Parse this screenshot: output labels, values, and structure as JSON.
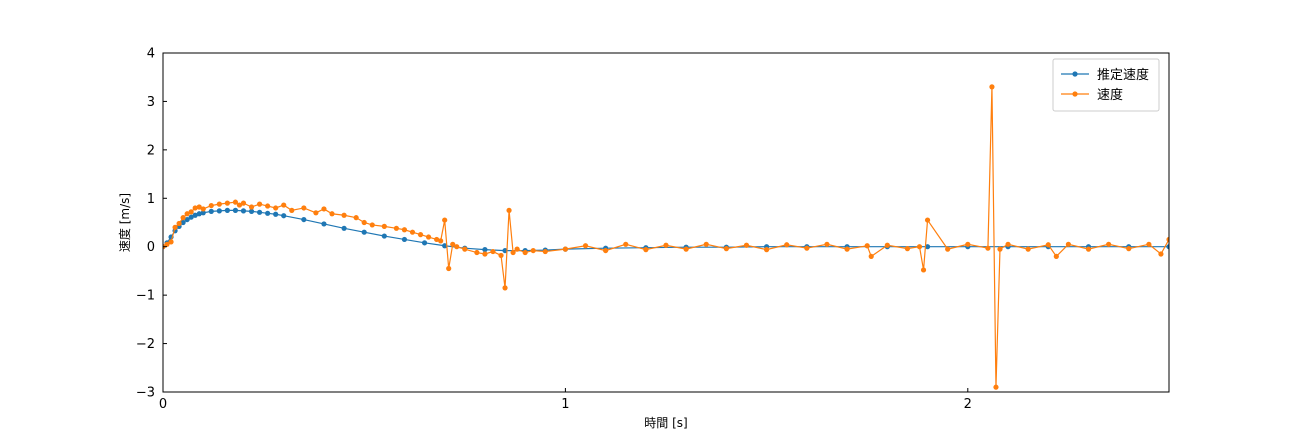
{
  "chart_data": {
    "type": "line",
    "xlabel": "時間 [s]",
    "ylabel": "速度 [m/s]",
    "xlim": [
      0,
      2.5
    ],
    "ylim": [
      -3,
      4
    ],
    "xticks": [
      0,
      1,
      2
    ],
    "yticks": [
      -3,
      -2,
      -1,
      0,
      1,
      2,
      3,
      4
    ],
    "grid": false,
    "legend_position": "top-right",
    "series": [
      {
        "name": "推定速度",
        "color": "#1f77b4",
        "marker": "circle",
        "x": [
          0,
          0.01,
          0.02,
          0.03,
          0.04,
          0.05,
          0.06,
          0.07,
          0.08,
          0.09,
          0.1,
          0.12,
          0.14,
          0.16,
          0.18,
          0.2,
          0.22,
          0.24,
          0.26,
          0.28,
          0.3,
          0.35,
          0.4,
          0.45,
          0.5,
          0.55,
          0.6,
          0.65,
          0.7,
          0.75,
          0.8,
          0.85,
          0.9,
          0.95,
          1.0,
          1.1,
          1.2,
          1.3,
          1.4,
          1.5,
          1.6,
          1.7,
          1.8,
          1.9,
          2.0,
          2.1,
          2.2,
          2.3,
          2.4,
          2.5
        ],
        "y": [
          0.0,
          0.08,
          0.2,
          0.33,
          0.42,
          0.5,
          0.56,
          0.61,
          0.65,
          0.68,
          0.7,
          0.73,
          0.74,
          0.75,
          0.75,
          0.74,
          0.73,
          0.71,
          0.69,
          0.67,
          0.64,
          0.56,
          0.47,
          0.38,
          0.3,
          0.22,
          0.15,
          0.08,
          0.02,
          -0.03,
          -0.06,
          -0.08,
          -0.08,
          -0.07,
          -0.05,
          -0.03,
          -0.02,
          -0.01,
          -0.01,
          0.0,
          0.0,
          0.0,
          0.0,
          0.0,
          0.0,
          0.0,
          0.0,
          0.0,
          0.0,
          0.0
        ]
      },
      {
        "name": "速度",
        "color": "#ff7f0e",
        "marker": "circle",
        "x": [
          0,
          0.01,
          0.02,
          0.03,
          0.04,
          0.05,
          0.06,
          0.07,
          0.08,
          0.09,
          0.1,
          0.12,
          0.14,
          0.16,
          0.18,
          0.19,
          0.2,
          0.22,
          0.24,
          0.26,
          0.28,
          0.3,
          0.32,
          0.35,
          0.38,
          0.4,
          0.42,
          0.45,
          0.48,
          0.5,
          0.52,
          0.55,
          0.58,
          0.6,
          0.62,
          0.64,
          0.66,
          0.68,
          0.69,
          0.7,
          0.71,
          0.72,
          0.73,
          0.75,
          0.78,
          0.8,
          0.82,
          0.84,
          0.85,
          0.86,
          0.87,
          0.88,
          0.9,
          0.92,
          0.95,
          1.0,
          1.05,
          1.1,
          1.15,
          1.2,
          1.25,
          1.3,
          1.35,
          1.4,
          1.45,
          1.5,
          1.55,
          1.6,
          1.65,
          1.7,
          1.75,
          1.76,
          1.8,
          1.85,
          1.88,
          1.89,
          1.9,
          1.95,
          2.0,
          2.05,
          2.06,
          2.07,
          2.08,
          2.1,
          2.15,
          2.2,
          2.22,
          2.25,
          2.3,
          2.35,
          2.4,
          2.45,
          2.48,
          2.5
        ],
        "y": [
          0.0,
          0.05,
          0.1,
          0.4,
          0.48,
          0.6,
          0.68,
          0.72,
          0.8,
          0.82,
          0.78,
          0.85,
          0.88,
          0.9,
          0.92,
          0.86,
          0.9,
          0.82,
          0.88,
          0.84,
          0.8,
          0.86,
          0.75,
          0.8,
          0.7,
          0.78,
          0.68,
          0.65,
          0.6,
          0.5,
          0.45,
          0.42,
          0.38,
          0.35,
          0.3,
          0.25,
          0.2,
          0.15,
          0.12,
          0.55,
          -0.45,
          0.05,
          0.0,
          -0.05,
          -0.12,
          -0.15,
          -0.1,
          -0.18,
          -0.85,
          0.75,
          -0.12,
          -0.05,
          -0.12,
          -0.08,
          -0.1,
          -0.05,
          0.02,
          -0.08,
          0.05,
          -0.06,
          0.03,
          -0.05,
          0.05,
          -0.04,
          0.03,
          -0.06,
          0.04,
          -0.03,
          0.05,
          -0.05,
          0.02,
          -0.2,
          0.03,
          -0.04,
          0.0,
          -0.48,
          0.55,
          -0.05,
          0.05,
          -0.03,
          3.3,
          -2.9,
          -0.05,
          0.05,
          -0.05,
          0.04,
          -0.2,
          0.05,
          -0.05,
          0.05,
          -0.04,
          0.05,
          -0.15,
          0.15
        ]
      }
    ]
  }
}
